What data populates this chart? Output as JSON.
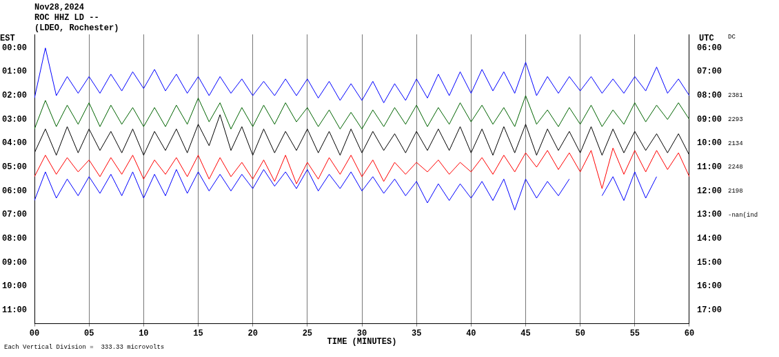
{
  "chart_data": {
    "type": "line",
    "title": "Nov28,2024",
    "subtitle": "ROC HHZ LD --\n(LDEO, Rochester)",
    "xlabel": "TIME (MINUTES)",
    "ylabel": "EST",
    "y2label": "UTC",
    "x": [
      0,
      1,
      2,
      3,
      4,
      5,
      6,
      7,
      8,
      9,
      10,
      11,
      12,
      13,
      14,
      15,
      16,
      17,
      18,
      19,
      20,
      21,
      22,
      23,
      24,
      25,
      26,
      27,
      28,
      29,
      30,
      31,
      32,
      33,
      34,
      35,
      36,
      37,
      38,
      39,
      40,
      41,
      42,
      43,
      44,
      45,
      46,
      47,
      48,
      49,
      50,
      51,
      52,
      53,
      54,
      55,
      56,
      57,
      58,
      59,
      60
    ],
    "xlim": [
      0,
      60
    ],
    "xticks": [
      {
        "value": 0,
        "label": "00"
      },
      {
        "value": 5,
        "label": "05"
      },
      {
        "value": 10,
        "label": "10"
      },
      {
        "value": 15,
        "label": "15"
      },
      {
        "value": 20,
        "label": "20"
      },
      {
        "value": 25,
        "label": "25"
      },
      {
        "value": 30,
        "label": "30"
      },
      {
        "value": 35,
        "label": "35"
      },
      {
        "value": 40,
        "label": "40"
      },
      {
        "value": 45,
        "label": "45"
      },
      {
        "value": 50,
        "label": "50"
      },
      {
        "value": 55,
        "label": "55"
      },
      {
        "value": 60,
        "label": "60"
      }
    ],
    "ylim": [
      11.57,
      -0.57
    ],
    "yticks": [
      {
        "value": 0,
        "label": "00:00"
      },
      {
        "value": 1,
        "label": "01:00"
      },
      {
        "value": 2,
        "label": "02:00"
      },
      {
        "value": 3,
        "label": "03:00"
      },
      {
        "value": 4,
        "label": "04:00"
      },
      {
        "value": 5,
        "label": "05:00"
      },
      {
        "value": 6,
        "label": "06:00"
      },
      {
        "value": 7,
        "label": "07:00"
      },
      {
        "value": 8,
        "label": "08:00"
      },
      {
        "value": 9,
        "label": "09:00"
      },
      {
        "value": 10,
        "label": "10:00"
      },
      {
        "value": 11,
        "label": "11:00"
      }
    ],
    "y2lim": [
      17.57,
      5.43
    ],
    "y2ticks": [
      {
        "value": 6,
        "label": "06:00"
      },
      {
        "value": 7,
        "label": "07:00"
      },
      {
        "value": 8,
        "label": "08:00"
      },
      {
        "value": 9,
        "label": "09:00"
      },
      {
        "value": 10,
        "label": "10:00"
      },
      {
        "value": 11,
        "label": "11:00"
      },
      {
        "value": 12,
        "label": "12:00"
      },
      {
        "value": 13,
        "label": "13:00"
      },
      {
        "value": 14,
        "label": "14:00"
      },
      {
        "value": 15,
        "label": "15:00"
      },
      {
        "value": 16,
        "label": "16:00"
      },
      {
        "value": 17,
        "label": "17:00"
      }
    ],
    "grid": "x",
    "legend": false,
    "marker": "none",
    "line_style": "solid",
    "series": [
      {
        "color": "#0000ff",
        "values": [
          2.1,
          0.0,
          2.0,
          1.2,
          1.9,
          1.2,
          1.9,
          1.1,
          1.8,
          1.0,
          1.7,
          0.9,
          1.8,
          1.1,
          1.9,
          1.2,
          2.0,
          1.2,
          1.9,
          1.3,
          2.0,
          1.4,
          2.0,
          1.3,
          2.0,
          1.3,
          2.1,
          1.4,
          2.2,
          1.5,
          2.2,
          1.4,
          2.3,
          1.5,
          2.2,
          1.3,
          2.1,
          1.1,
          2.0,
          1.0,
          1.9,
          0.9,
          1.8,
          1.0,
          1.9,
          0.6,
          2.0,
          1.2,
          1.9,
          1.2,
          1.8,
          1.2,
          1.9,
          1.3,
          1.9,
          1.2,
          1.8,
          0.8,
          1.9,
          1.3,
          2.0
        ]
      },
      {
        "color": "#006400",
        "values": [
          3.4,
          2.2,
          3.3,
          2.4,
          3.2,
          2.3,
          3.3,
          2.4,
          3.2,
          2.5,
          3.3,
          2.5,
          3.3,
          2.4,
          3.2,
          2.1,
          3.1,
          2.3,
          3.4,
          2.5,
          3.3,
          2.4,
          3.2,
          2.3,
          3.1,
          2.5,
          3.3,
          2.6,
          3.4,
          2.7,
          3.4,
          2.6,
          3.3,
          2.5,
          3.2,
          2.4,
          3.3,
          2.5,
          3.2,
          2.3,
          3.1,
          2.4,
          3.2,
          2.5,
          3.3,
          2.0,
          3.2,
          2.6,
          3.3,
          2.5,
          3.2,
          2.4,
          3.3,
          2.6,
          3.2,
          2.3,
          3.1,
          2.4,
          3.0,
          2.3,
          3.0
        ]
      },
      {
        "color": "#000000",
        "values": [
          4.4,
          3.4,
          4.5,
          3.3,
          4.4,
          3.4,
          4.3,
          3.5,
          4.4,
          3.4,
          4.5,
          3.5,
          4.3,
          3.4,
          4.4,
          3.2,
          4.1,
          2.8,
          4.3,
          3.3,
          4.5,
          3.4,
          4.4,
          3.5,
          4.3,
          3.4,
          4.4,
          3.5,
          4.5,
          3.4,
          4.4,
          3.5,
          4.3,
          3.6,
          4.4,
          3.5,
          4.3,
          3.4,
          4.3,
          3.3,
          4.4,
          3.4,
          4.5,
          3.3,
          4.4,
          3.2,
          4.5,
          3.4,
          4.3,
          3.5,
          4.4,
          3.3,
          4.5,
          3.4,
          4.4,
          3.5,
          4.3,
          3.6,
          4.4,
          3.6,
          4.5
        ]
      },
      {
        "color": "#ff0000",
        "values": [
          5.4,
          4.5,
          5.3,
          4.6,
          5.2,
          4.7,
          5.4,
          4.6,
          5.3,
          4.5,
          5.5,
          4.7,
          5.3,
          4.6,
          5.4,
          4.5,
          5.5,
          4.6,
          5.4,
          4.8,
          5.5,
          4.7,
          5.6,
          4.5,
          5.7,
          4.8,
          5.5,
          4.6,
          5.3,
          4.5,
          5.4,
          4.7,
          5.6,
          4.8,
          5.3,
          4.8,
          5.2,
          4.7,
          5.3,
          4.8,
          5.2,
          4.6,
          5.3,
          4.5,
          5.2,
          4.4,
          5.0,
          4.3,
          5.1,
          4.4,
          5.2,
          4.3,
          5.9,
          4.2,
          5.3,
          4.3,
          5.2,
          4.3,
          5.1,
          4.4,
          5.4
        ]
      },
      {
        "color": "#0000ff",
        "values": [
          6.4,
          5.2,
          6.3,
          5.5,
          6.2,
          5.4,
          6.1,
          5.3,
          6.2,
          5.2,
          6.3,
          5.3,
          6.2,
          5.1,
          6.1,
          5.2,
          6.0,
          5.3,
          6.0,
          5.3,
          5.9,
          5.1,
          5.8,
          5.2,
          5.9,
          5.1,
          6.0,
          5.3,
          5.9,
          5.2,
          6.0,
          5.4,
          6.1,
          5.5,
          6.2,
          5.6,
          6.5,
          5.7,
          6.4,
          5.7,
          6.3,
          5.6,
          6.4,
          5.5,
          6.8,
          5.5,
          6.3,
          5.6,
          6.2,
          5.5,
          null,
          null,
          6.2,
          5.4,
          6.4,
          5.2,
          6.3,
          5.4,
          null,
          null,
          null
        ]
      }
    ],
    "annotations": [
      "DC",
      "2381",
      "2293",
      "2134",
      "2248",
      "2198",
      "-nan(ind",
      "Each Vertical Division =  333.33 microvolts"
    ]
  }
}
